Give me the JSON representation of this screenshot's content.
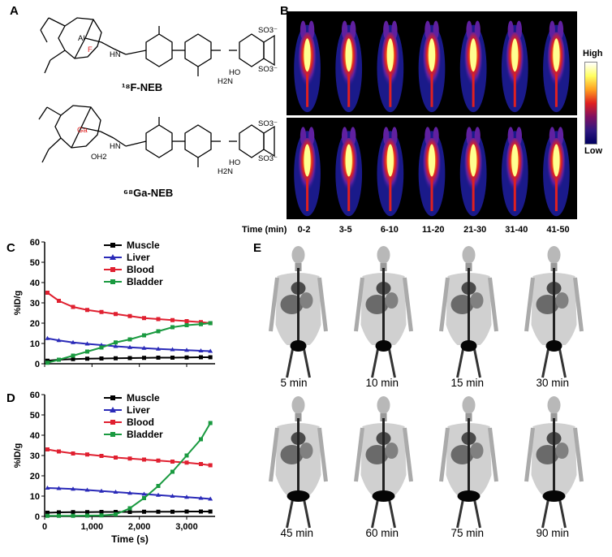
{
  "panels": {
    "a": "A",
    "b": "B",
    "c": "C",
    "d": "D",
    "e": "E"
  },
  "chem": {
    "f_neb_label": "¹⁸F-NEB",
    "ga_neb_label": "⁶⁸Ga-NEB",
    "al": "Al",
    "f": "F",
    "ga": "Ga",
    "oh2": "OH2",
    "hn": "HN",
    "ho": "HO",
    "h2n": "H2N",
    "so3": "SO3⁻",
    "n": "N",
    "o": "O"
  },
  "pet": {
    "scale_high": "High",
    "scale_low": "Low",
    "time_label": "Time (min)",
    "time_points": [
      "0-2",
      "3-5",
      "6-10",
      "11-20",
      "21-30",
      "31-40",
      "41-50"
    ]
  },
  "colors": {
    "muscle": "#000000",
    "liver": "#2a2ab8",
    "blood": "#e02030",
    "bladder": "#1a9a40"
  },
  "mip": {
    "times": [
      "5 min",
      "10 min",
      "15 min",
      "30 min",
      "45 min",
      "60 min",
      "75 min",
      "90 min"
    ]
  },
  "chart_data": [
    {
      "type": "line",
      "panel": "C",
      "xlabel": "",
      "ylabel": "%ID/g",
      "xlim": [
        0,
        3600
      ],
      "ylim": [
        0,
        60
      ],
      "yticks": [
        0,
        10,
        20,
        30,
        40,
        50,
        60
      ],
      "x": [
        60,
        300,
        600,
        900,
        1200,
        1500,
        1800,
        2100,
        2400,
        2700,
        3000,
        3300,
        3500
      ],
      "series": [
        {
          "name": "Muscle",
          "values": [
            1.5,
            2.0,
            2.3,
            2.5,
            2.6,
            2.7,
            2.8,
            2.9,
            3.0,
            3.0,
            3.1,
            3.2,
            3.2
          ]
        },
        {
          "name": "Liver",
          "values": [
            12.5,
            11.5,
            10.5,
            9.8,
            9.2,
            8.6,
            8.1,
            7.7,
            7.3,
            7.0,
            6.7,
            6.4,
            6.2
          ]
        },
        {
          "name": "Blood",
          "values": [
            35,
            31,
            28,
            26.5,
            25.5,
            24.5,
            23.5,
            22.5,
            22,
            21.5,
            21,
            20.5,
            20
          ]
        },
        {
          "name": "Bladder",
          "values": [
            0.5,
            2,
            4,
            6,
            8,
            10.5,
            12,
            14,
            16,
            18,
            19,
            19.5,
            20
          ]
        }
      ]
    },
    {
      "type": "line",
      "panel": "D",
      "xlabel": "Time (s)",
      "ylabel": "%ID/g",
      "xlim": [
        0,
        3600
      ],
      "ylim": [
        0,
        60
      ],
      "yticks": [
        0,
        10,
        20,
        30,
        40,
        50,
        60
      ],
      "xticks": [
        0,
        1000,
        2000,
        3000
      ],
      "xtick_labels": [
        "0",
        "1,000",
        "2,000",
        "3,000"
      ],
      "x": [
        60,
        300,
        600,
        900,
        1200,
        1500,
        1800,
        2100,
        2400,
        2700,
        3000,
        3300,
        3500
      ],
      "series": [
        {
          "name": "Muscle",
          "values": [
            1.8,
            2.0,
            2.1,
            2.1,
            2.2,
            2.2,
            2.2,
            2.3,
            2.3,
            2.3,
            2.4,
            2.4,
            2.4
          ]
        },
        {
          "name": "Liver",
          "values": [
            14,
            13.8,
            13.5,
            13,
            12.5,
            12,
            11.5,
            11,
            10.5,
            10,
            9.5,
            9,
            8.6
          ]
        },
        {
          "name": "Blood",
          "values": [
            33,
            32,
            31,
            30.5,
            29.8,
            29,
            28.5,
            28,
            27.5,
            27,
            26.5,
            25.8,
            25.2
          ]
        },
        {
          "name": "Bladder",
          "values": [
            0.3,
            0.3,
            0.3,
            0.4,
            0.5,
            1.0,
            4,
            9,
            15,
            22,
            30,
            38,
            46
          ]
        }
      ]
    }
  ]
}
